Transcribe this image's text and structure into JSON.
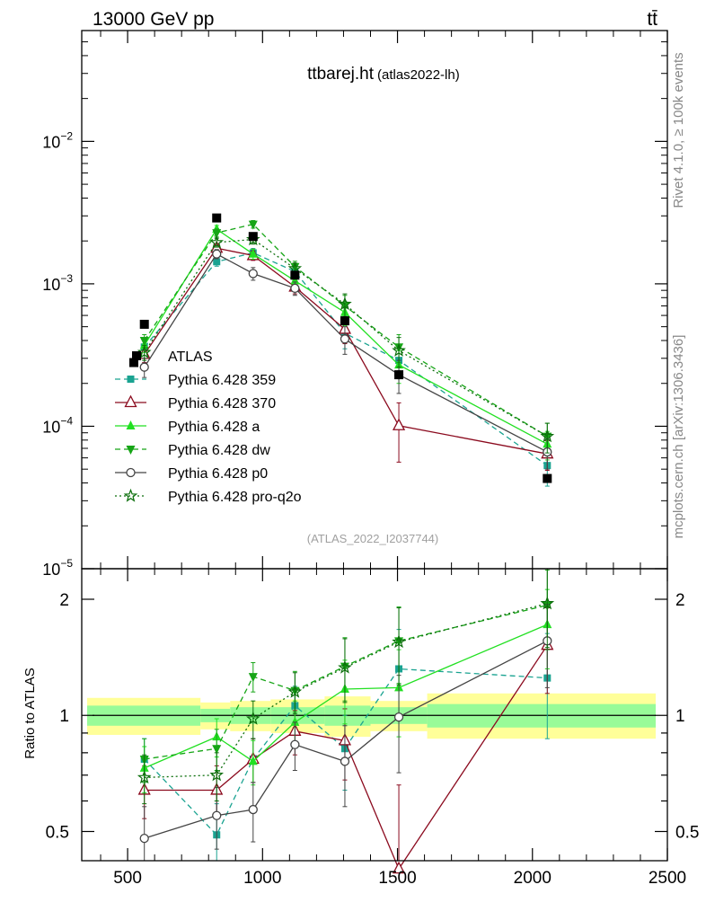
{
  "header": {
    "energy_label": "13000 GeV pp",
    "process_label": "tt̄"
  },
  "side_labels": {
    "rivet": "Rivet 4.1.0, ≥ 100k events",
    "mcplots": "mcplots.cern.ch [arXiv:1306.3436]"
  },
  "colors": {
    "p359": "#1aa391",
    "p370": "#8b0a1e",
    "pa": "#22e022",
    "pdw": "#16a516",
    "pp0": "#444444",
    "pq2o": "#0a6e0a",
    "band_inner": "#98fb98",
    "band_outer": "#ffff99"
  },
  "chart_data": [
    {
      "type": "line",
      "panel": "main",
      "title": "ttbarej.ht",
      "subtitle": "(atlas2022-lh)",
      "watermark": "(ATLAS_2022_I2037744)",
      "yscale": "log",
      "xlim": [
        330,
        2500
      ],
      "ylim": [
        1e-05,
        0.06
      ],
      "ytick_labels": [
        {
          "value": 0.01,
          "base": "10",
          "exp": "−2"
        },
        {
          "value": 0.001,
          "base": "10",
          "exp": "−3"
        },
        {
          "value": 0.0001,
          "base": "10",
          "exp": "−4"
        },
        {
          "value": 1e-05,
          "base": "10",
          "exp": "−5"
        }
      ],
      "x": [
        562,
        830,
        965,
        1120,
        1305,
        1505,
        2055
      ],
      "data": {
        "name": "ATLAS",
        "x": [
          523,
          562,
          830,
          965,
          1120,
          1305,
          1505,
          2055
        ],
        "values": [
          0.00028,
          0.00052,
          0.0029,
          0.00215,
          0.00115,
          0.00055,
          0.00023,
          4.3e-05
        ]
      },
      "series": [
        {
          "key": "p359",
          "name": "Pythia 6.428 359",
          "marker": "square",
          "dash": "dashed",
          "values": [
            0.00036,
            0.00143,
            0.00165,
            0.00122,
            0.00045,
            0.00029,
            5.3e-05
          ],
          "errors": [
            4e-05,
            0.0001,
            0.00012,
            0.00012,
            0.0001,
            7e-05,
            1.5e-05
          ]
        },
        {
          "key": "p370",
          "name": "Pythia 6.428 370",
          "marker": "open-triangle",
          "dash": "solid",
          "values": [
            0.00032,
            0.00178,
            0.00158,
            0.00095,
            0.00048,
            0.000101,
            6.4e-05
          ],
          "errors": [
            4e-05,
            0.00012,
            0.00012,
            0.0001,
            0.0001,
            4.5e-05,
            1.5e-05
          ]
        },
        {
          "key": "pa",
          "name": "Pythia 6.428 a",
          "marker": "triangle",
          "dash": "solid",
          "values": [
            0.00037,
            0.00242,
            0.00162,
            0.00105,
            0.00063,
            0.00027,
            7.5e-05
          ],
          "errors": [
            4e-05,
            0.00015,
            0.00013,
            0.0001,
            0.00012,
            7e-05,
            1.7e-05
          ]
        },
        {
          "key": "pdw",
          "name": "Pythia 6.428 dw",
          "marker": "down-triangle",
          "dash": "dashed",
          "values": [
            0.0004,
            0.00228,
            0.00262,
            0.00132,
            0.0007,
            0.00036,
            8.5e-05
          ],
          "errors": [
            4e-05,
            0.00015,
            0.00016,
            0.00012,
            0.00013,
            8e-05,
            2e-05
          ]
        },
        {
          "key": "pp0",
          "name": "Pythia 6.428 p0",
          "marker": "open-circle",
          "dash": "solid",
          "values": [
            0.00026,
            0.00162,
            0.00118,
            0.00093,
            0.00041,
            0.00023,
            6.6e-05
          ],
          "errors": [
            4e-05,
            0.00012,
            0.00012,
            0.0001,
            9e-05,
            6e-05,
            1.6e-05
          ]
        },
        {
          "key": "pq2o",
          "name": "Pythia 6.428 pro-q2o",
          "marker": "star",
          "dash": "dotted",
          "values": [
            0.00033,
            0.00195,
            0.00205,
            0.00128,
            0.00072,
            0.00034,
            8.5e-05
          ],
          "errors": [
            4e-05,
            0.00014,
            0.00015,
            0.00012,
            0.00013,
            8e-05,
            2e-05
          ]
        }
      ]
    },
    {
      "type": "line",
      "panel": "ratio",
      "ylabel": "Ratio to ATLAS",
      "yscale": "log",
      "xlim": [
        330,
        2500
      ],
      "ylim": [
        0.42,
        2.4
      ],
      "ytick_labels": [
        0.5,
        1,
        2
      ],
      "xtick_labels": [
        500,
        1000,
        1500,
        2000,
        2500
      ],
      "x": [
        562,
        830,
        965,
        1120,
        1305,
        1505,
        2055
      ],
      "bands": [
        {
          "x0": 350,
          "x1": 770,
          "inner": [
            0.94,
            1.06
          ],
          "outer": [
            0.89,
            1.11
          ]
        },
        {
          "x0": 770,
          "x1": 880,
          "inner": [
            0.96,
            1.04
          ],
          "outer": [
            0.92,
            1.08
          ]
        },
        {
          "x0": 880,
          "x1": 1030,
          "inner": [
            0.95,
            1.05
          ],
          "outer": [
            0.91,
            1.09
          ]
        },
        {
          "x0": 1030,
          "x1": 1230,
          "inner": [
            0.95,
            1.05
          ],
          "outer": [
            0.9,
            1.1
          ]
        },
        {
          "x0": 1230,
          "x1": 1400,
          "inner": [
            0.94,
            1.06
          ],
          "outer": [
            0.88,
            1.12
          ]
        },
        {
          "x0": 1400,
          "x1": 1610,
          "inner": [
            0.95,
            1.05
          ],
          "outer": [
            0.91,
            1.09
          ]
        },
        {
          "x0": 1610,
          "x1": 2500,
          "inner": [
            0.93,
            1.07
          ],
          "outer": [
            0.87,
            1.14
          ]
        }
      ],
      "series": [
        {
          "key": "p359",
          "values": [
            0.77,
            0.49,
            0.77,
            1.06,
            0.82,
            1.32,
            1.25
          ],
          "errors": [
            0.1,
            0.1,
            0.1,
            0.13,
            0.18,
            0.35,
            0.38
          ]
        },
        {
          "key": "p370",
          "values": [
            0.64,
            0.64,
            0.77,
            0.91,
            0.86,
            0.4,
            1.52
          ],
          "errors": [
            0.1,
            0.1,
            0.1,
            0.12,
            0.18,
            0.26,
            0.38
          ]
        },
        {
          "key": "pa",
          "values": [
            0.73,
            0.88,
            0.76,
            0.96,
            1.17,
            1.18,
            1.72
          ],
          "errors": [
            0.1,
            0.1,
            0.1,
            0.13,
            0.22,
            0.3,
            0.4
          ]
        },
        {
          "key": "pdw",
          "values": [
            0.77,
            0.82,
            1.26,
            1.16,
            1.34,
            1.56,
            1.93
          ],
          "errors": [
            0.1,
            0.1,
            0.11,
            0.14,
            0.25,
            0.35,
            0.45
          ]
        },
        {
          "key": "pp0",
          "values": [
            0.48,
            0.55,
            0.57,
            0.84,
            0.76,
            0.99,
            1.56
          ],
          "errors": [
            0.1,
            0.1,
            0.1,
            0.12,
            0.18,
            0.28,
            0.38
          ]
        },
        {
          "key": "pq2o",
          "values": [
            0.69,
            0.7,
            0.98,
            1.15,
            1.33,
            1.55,
            1.95
          ],
          "errors": [
            0.1,
            0.1,
            0.11,
            0.14,
            0.25,
            0.35,
            0.45
          ]
        }
      ]
    }
  ]
}
